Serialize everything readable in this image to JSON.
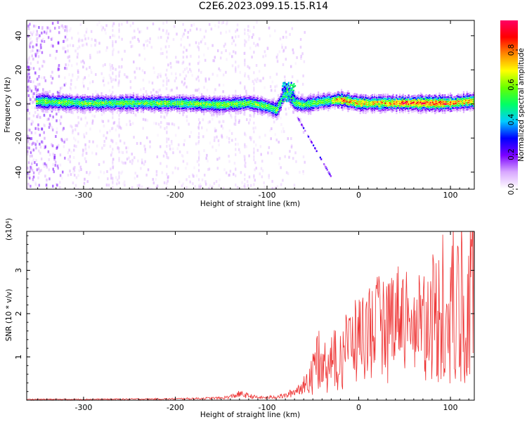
{
  "title": "C2E6.2023.099.15.15.R14",
  "chart_data": [
    {
      "type": "heatmap",
      "title": "C2E6.2023.099.15.15.R14",
      "xlabel": "Height of straight line (km)",
      "ylabel": "Frequency (Hz)",
      "xlim": [
        -362,
        126
      ],
      "ylim": [
        -50,
        49
      ],
      "xticks": [
        -300,
        -200,
        -100,
        0,
        100
      ],
      "yticks": [
        -40,
        -20,
        0,
        20,
        40
      ],
      "colorbar": {
        "label": "Normalized spectral amplitude",
        "range": [
          0,
          1
        ],
        "ticks": [
          "0.0",
          "0.2",
          "0.4",
          "0.6",
          "0.8"
        ],
        "colormap": [
          "#ffffff",
          "#d9a8ff",
          "#7a00ff",
          "#0000ff",
          "#00ccff",
          "#00ff66",
          "#66ff00",
          "#ffff00",
          "#ff8800",
          "#ff0000",
          "#ff0066"
        ]
      },
      "ridge_center_hz": {
        "x": [
          -350,
          -300,
          -250,
          -200,
          -150,
          -120,
          -100,
          -90,
          -80,
          -70,
          -60,
          -40,
          -20,
          0,
          20,
          40,
          60,
          80,
          100,
          120
        ],
        "y": [
          2,
          1,
          1,
          1,
          0,
          1,
          -1,
          -3,
          8,
          1,
          0,
          2,
          3,
          1,
          1,
          1,
          1,
          1,
          1,
          2
        ]
      },
      "grid": false
    },
    {
      "type": "line",
      "xlabel": "Height of straight line (km)",
      "ylabel": "SNR (10 * v/v)",
      "y_multiplier": "(x10⁴)",
      "xlim": [
        -362,
        126
      ],
      "ylim": [
        0,
        3.9
      ],
      "xticks": [
        -300,
        -200,
        -100,
        0,
        100
      ],
      "yticks": [
        1,
        2,
        3
      ],
      "series": [
        {
          "color": "#ee3333",
          "x": [
            -362,
            -300,
            -200,
            -150,
            -140,
            -130,
            -120,
            -110,
            -100,
            -90,
            -80,
            -70,
            -60,
            -50,
            -45,
            -40,
            -30,
            -20,
            -10,
            0,
            10,
            20,
            30,
            40,
            50,
            60,
            70,
            80,
            90,
            95,
            100,
            105,
            110,
            115,
            120,
            126
          ],
          "y": [
            0.02,
            0.02,
            0.03,
            0.05,
            0.08,
            0.14,
            0.1,
            0.06,
            0.06,
            0.08,
            0.1,
            0.2,
            0.35,
            0.7,
            1.1,
            0.9,
            1.0,
            1.2,
            1.4,
            1.55,
            1.75,
            1.85,
            1.95,
            2.05,
            2.1,
            2.0,
            2.05,
            1.95,
            2.0,
            2.4,
            2.5,
            2.3,
            2.4,
            2.1,
            2.6,
            2.5
          ]
        }
      ],
      "grid": false
    }
  ]
}
